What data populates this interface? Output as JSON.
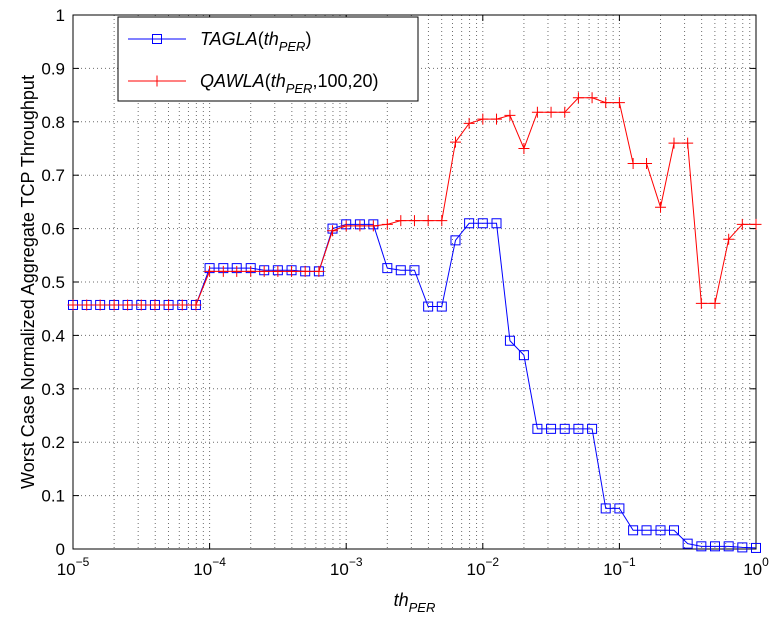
{
  "chart_data": {
    "type": "line",
    "xlabel": {
      "base": "th",
      "sub": "PER"
    },
    "ylabel": "Worst Case Normalized Aggregate TCP Throughput",
    "x_scale": "log",
    "xlim": [
      1e-05,
      1
    ],
    "ylim": [
      0,
      1
    ],
    "grid": true,
    "legend_position": "top-left",
    "x_ticks": [
      {
        "base": "10",
        "exp": "−5",
        "value": 1e-05
      },
      {
        "base": "10",
        "exp": "−4",
        "value": 0.0001
      },
      {
        "base": "10",
        "exp": "−3",
        "value": 0.001
      },
      {
        "base": "10",
        "exp": "−2",
        "value": 0.01
      },
      {
        "base": "10",
        "exp": "−1",
        "value": 0.1
      },
      {
        "base": "10",
        "exp": "0",
        "value": 1
      }
    ],
    "y_ticks": [
      "0",
      "0.1",
      "0.2",
      "0.3",
      "0.4",
      "0.5",
      "0.6",
      "0.7",
      "0.8",
      "0.9",
      "1"
    ],
    "series": [
      {
        "name_parts": [
          {
            "text": "TAGLA",
            "italic": true
          },
          {
            "text": "(",
            "italic": false
          },
          {
            "text": "th",
            "italic": true
          },
          {
            "text": "PER",
            "italic": true,
            "sub": true
          },
          {
            "text": ")",
            "italic": false
          }
        ],
        "color": "#0000ff",
        "marker": "square",
        "x": [
          1e-05,
          1.26e-05,
          1.58e-05,
          2e-05,
          2.51e-05,
          3.16e-05,
          3.98e-05,
          5.01e-05,
          6.31e-05,
          7.94e-05,
          0.0001,
          0.000126,
          0.000158,
          0.0002,
          0.000251,
          0.000316,
          0.000398,
          0.000501,
          0.000631,
          0.000794,
          0.001,
          0.00126,
          0.00158,
          0.002,
          0.00251,
          0.00316,
          0.00398,
          0.00501,
          0.00631,
          0.00794,
          0.01,
          0.0126,
          0.0158,
          0.02,
          0.0251,
          0.0316,
          0.0398,
          0.0501,
          0.0631,
          0.0794,
          0.1,
          0.126,
          0.158,
          0.2,
          0.251,
          0.316,
          0.398,
          0.501,
          0.631,
          0.794,
          1
        ],
        "y": [
          0.457,
          0.457,
          0.457,
          0.457,
          0.457,
          0.457,
          0.457,
          0.457,
          0.457,
          0.457,
          0.526,
          0.526,
          0.526,
          0.526,
          0.522,
          0.522,
          0.522,
          0.52,
          0.52,
          0.6,
          0.608,
          0.608,
          0.608,
          0.526,
          0.522,
          0.522,
          0.454,
          0.454,
          0.578,
          0.61,
          0.61,
          0.61,
          0.39,
          0.363,
          0.225,
          0.225,
          0.225,
          0.225,
          0.225,
          0.076,
          0.076,
          0.035,
          0.035,
          0.035,
          0.035,
          0.01,
          0.005,
          0.005,
          0.005,
          0.003,
          0.002
        ]
      },
      {
        "name_parts": [
          {
            "text": "QAWLA",
            "italic": true
          },
          {
            "text": "(",
            "italic": false
          },
          {
            "text": "th",
            "italic": true
          },
          {
            "text": "PER",
            "italic": true,
            "sub": true
          },
          {
            "text": ",100,20)",
            "italic": false
          }
        ],
        "color": "#ff0000",
        "marker": "plus",
        "x": [
          1e-05,
          1.26e-05,
          1.58e-05,
          2e-05,
          2.51e-05,
          3.16e-05,
          3.98e-05,
          5.01e-05,
          6.31e-05,
          7.94e-05,
          0.0001,
          0.000126,
          0.000158,
          0.0002,
          0.000251,
          0.000316,
          0.000398,
          0.000501,
          0.000631,
          0.000794,
          0.001,
          0.00126,
          0.00158,
          0.002,
          0.00251,
          0.00316,
          0.00398,
          0.00501,
          0.00631,
          0.00794,
          0.01,
          0.0126,
          0.0158,
          0.02,
          0.0251,
          0.0316,
          0.0398,
          0.0501,
          0.0631,
          0.0794,
          0.1,
          0.126,
          0.158,
          0.2,
          0.251,
          0.316,
          0.398,
          0.501,
          0.631,
          0.794,
          1
        ],
        "y": [
          0.457,
          0.457,
          0.457,
          0.457,
          0.457,
          0.457,
          0.457,
          0.457,
          0.457,
          0.457,
          0.52,
          0.52,
          0.52,
          0.52,
          0.52,
          0.52,
          0.52,
          0.52,
          0.52,
          0.596,
          0.605,
          0.605,
          0.605,
          0.608,
          0.615,
          0.615,
          0.615,
          0.615,
          0.762,
          0.797,
          0.805,
          0.805,
          0.812,
          0.75,
          0.818,
          0.818,
          0.818,
          0.845,
          0.845,
          0.836,
          0.836,
          0.722,
          0.722,
          0.64,
          0.76,
          0.76,
          0.46,
          0.46,
          0.58,
          0.608,
          0.608
        ]
      }
    ]
  }
}
